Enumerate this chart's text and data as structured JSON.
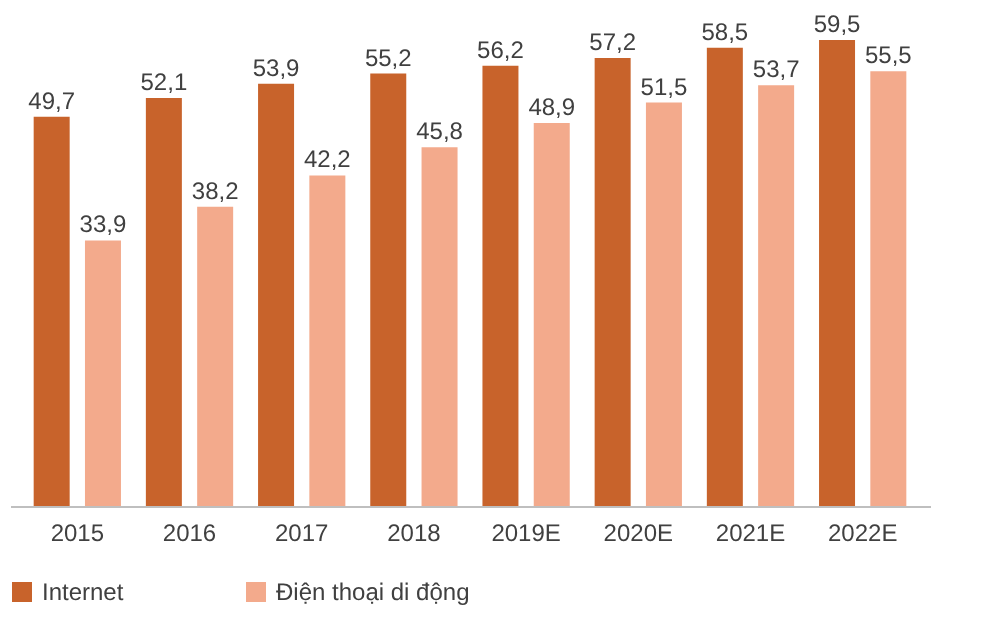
{
  "chart_data": {
    "type": "bar",
    "categories": [
      "2015",
      "2016",
      "2017",
      "2018",
      "2019E",
      "2020E",
      "2021E",
      "2022E"
    ],
    "series": [
      {
        "name": "Internet",
        "color": "#c8632b",
        "values": [
          49.7,
          52.1,
          53.9,
          55.2,
          56.2,
          57.2,
          58.5,
          59.5
        ],
        "value_labels": [
          "49,7",
          "52,1",
          "53,9",
          "55,2",
          "56,2",
          "57,2",
          "58,5",
          "59,5"
        ]
      },
      {
        "name": "Điện thoại di động",
        "color": "#f3aa8c",
        "values": [
          33.9,
          38.2,
          42.2,
          45.8,
          48.9,
          51.5,
          53.7,
          55.5
        ],
        "value_labels": [
          "33,9",
          "38,2",
          "42,2",
          "45,8",
          "48,9",
          "51,5",
          "53,7",
          "55,5"
        ]
      }
    ],
    "tick_labels": "x",
    "grid": false,
    "legend": "bottom"
  }
}
